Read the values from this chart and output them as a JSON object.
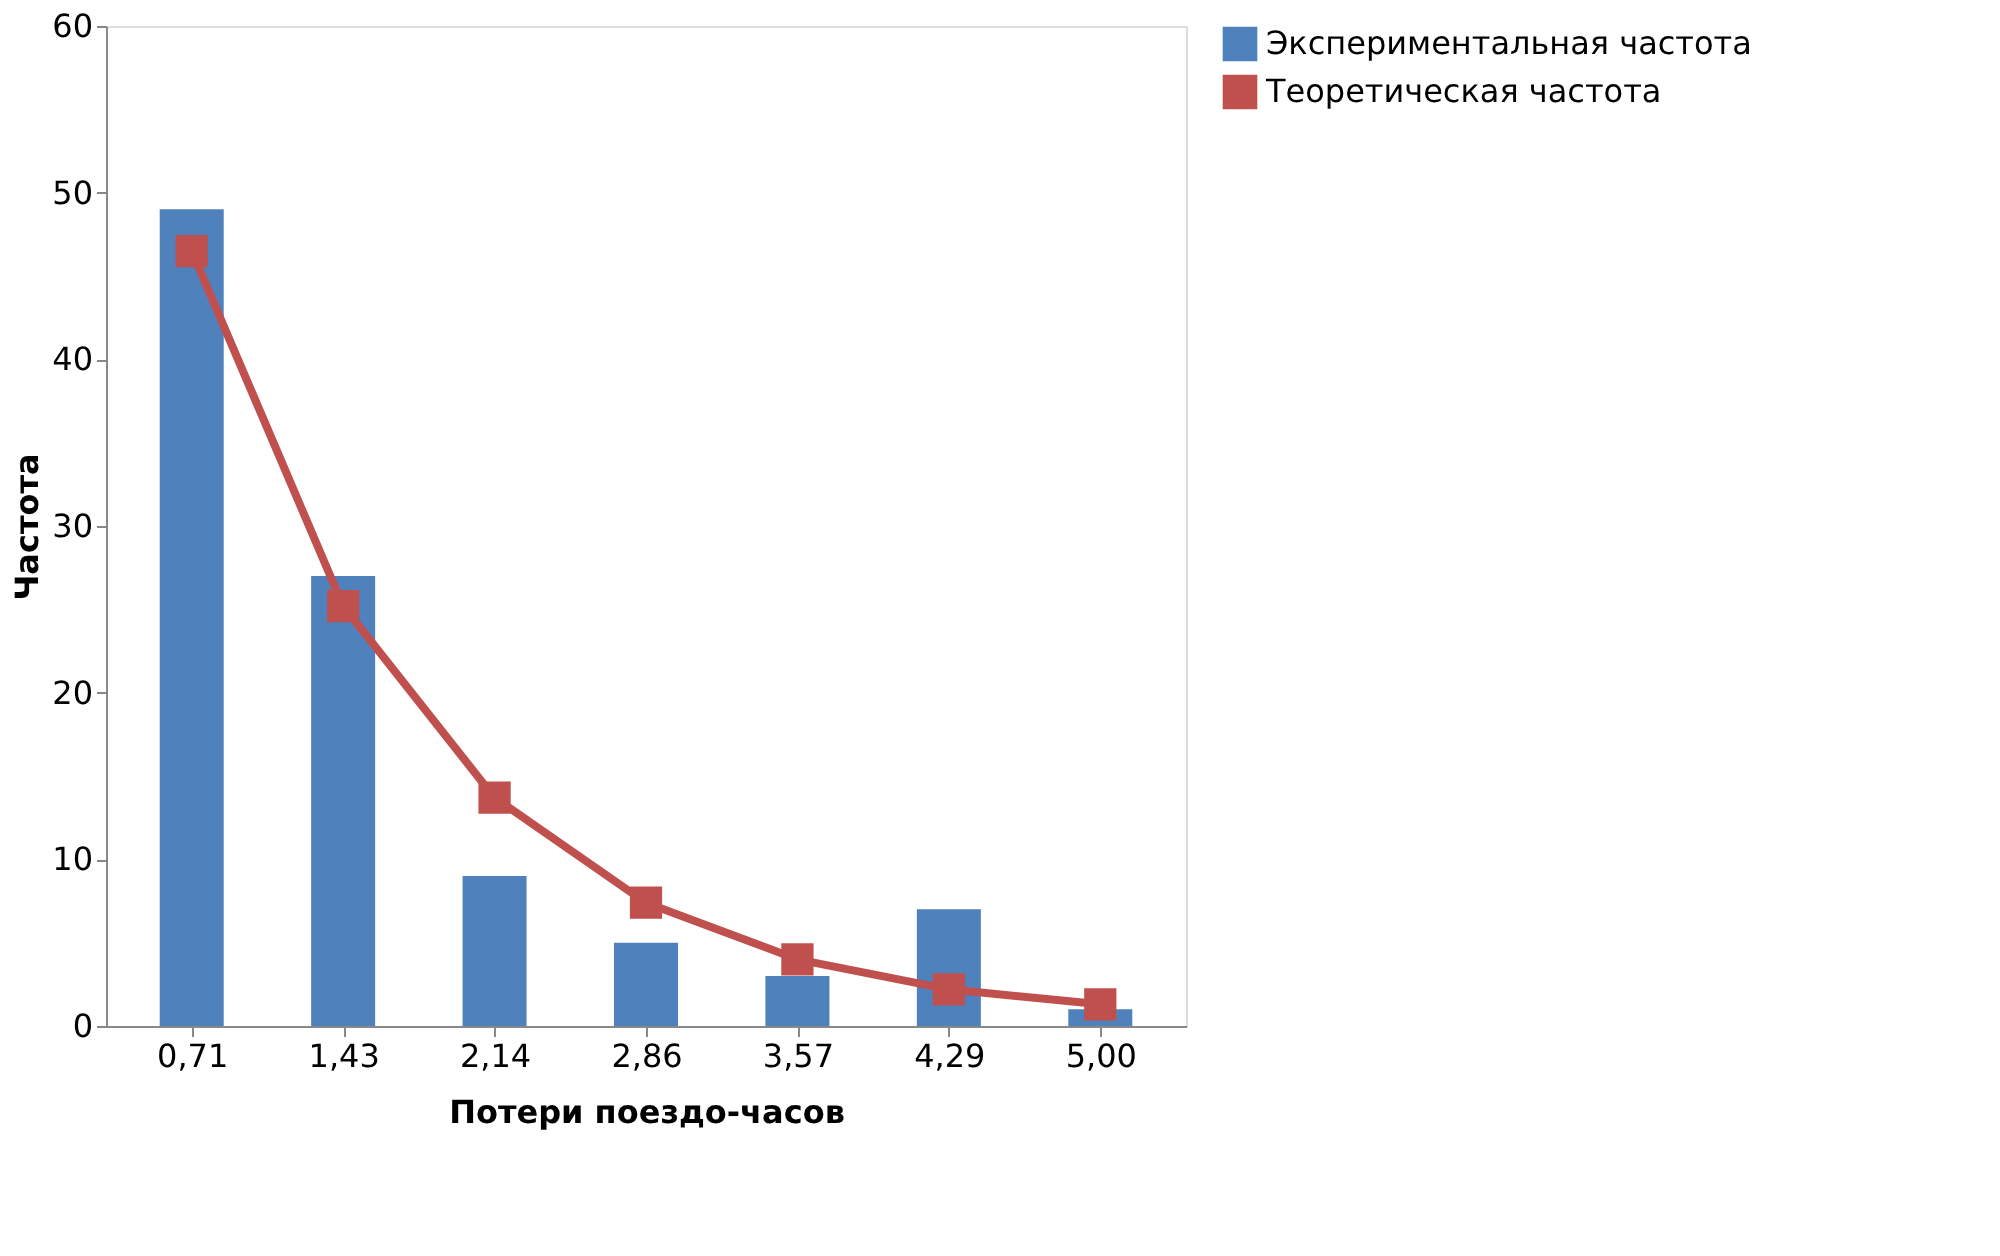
{
  "chart_data": {
    "type": "bar",
    "xlabel": "Потери поездо-часов",
    "ylabel": "Частота",
    "categories": [
      "0,71",
      "1,43",
      "2,14",
      "2,86",
      "3,57",
      "4,29",
      "5,00"
    ],
    "series": [
      {
        "name": "Экспериментальная частота",
        "color": "#4f81bd",
        "values": [
          49,
          27,
          9,
          5,
          3,
          7,
          1
        ]
      },
      {
        "name": "Теоретическая частота",
        "type": "line",
        "color": "#c0504d",
        "marker": "square",
        "values": [
          46.5,
          25.2,
          13.7,
          7.4,
          4.0,
          2.2,
          1.3
        ]
      }
    ],
    "ylim": [
      0,
      60
    ],
    "yticks": [
      0,
      10,
      20,
      30,
      40,
      50,
      60
    ],
    "grid": false,
    "legend": "right"
  }
}
